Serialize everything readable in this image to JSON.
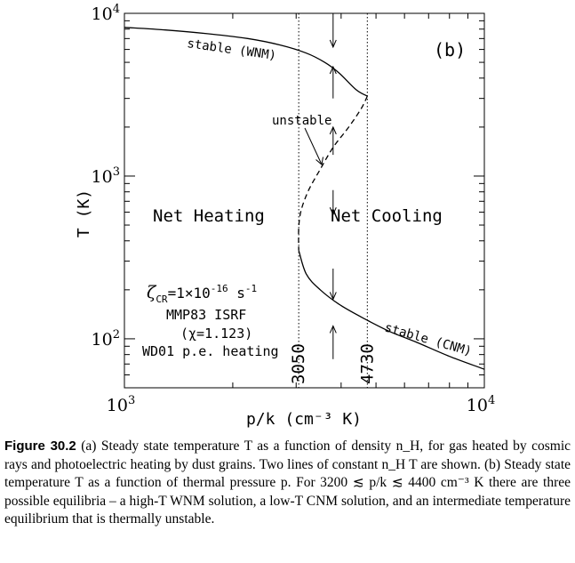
{
  "chart_data": {
    "type": "line",
    "panel_label": "(b)",
    "xlabel": "p/k (cm⁻³ K)",
    "ylabel": "T (K)",
    "xscale": "log",
    "yscale": "log",
    "xlim": [
      1000,
      10000
    ],
    "ylim": [
      50,
      10000
    ],
    "xticks": [
      {
        "value": 1000,
        "base": "10",
        "exp": "3"
      },
      {
        "value": 10000,
        "base": "10",
        "exp": "4"
      }
    ],
    "yticks": [
      {
        "value": 100,
        "base": "10",
        "exp": "2"
      },
      {
        "value": 1000,
        "base": "10",
        "exp": "3"
      },
      {
        "value": 10000,
        "base": "10",
        "exp": "4"
      }
    ],
    "series": [
      {
        "style": "solid",
        "points": [
          [
            1000,
            8200
          ],
          [
            1300,
            7900
          ],
          [
            1700,
            7500
          ],
          [
            2200,
            7000
          ],
          [
            2700,
            6400
          ],
          [
            3200,
            5700
          ],
          [
            3600,
            5000
          ],
          [
            3950,
            4300
          ],
          [
            4400,
            3400
          ],
          [
            4730,
            3100
          ]
        ]
      },
      {
        "style": "dashed",
        "points": [
          [
            4730,
            3100
          ],
          [
            4550,
            2600
          ],
          [
            4200,
            2000
          ],
          [
            3800,
            1500
          ],
          [
            3500,
            1100
          ],
          [
            3250,
            820
          ],
          [
            3100,
            620
          ],
          [
            3050,
            480
          ],
          [
            3050,
            350
          ]
        ]
      },
      {
        "style": "solid",
        "points": [
          [
            3050,
            350
          ],
          [
            3200,
            250
          ],
          [
            3500,
            200
          ],
          [
            4000,
            160
          ],
          [
            4730,
            130
          ],
          [
            5500,
            110
          ],
          [
            6500,
            95
          ],
          [
            8000,
            78
          ],
          [
            10000,
            65
          ]
        ]
      }
    ],
    "vertical_lines": [
      {
        "x": 3050,
        "label": "3050"
      },
      {
        "x": 4730,
        "label": "4730"
      }
    ],
    "arrows": [
      {
        "x": 3800,
        "y_from": 10000,
        "y_to": 6200
      },
      {
        "x": 3800,
        "y_from": 3000,
        "y_to": 4700
      },
      {
        "x": 3800,
        "y_from": 1350,
        "y_to": 2000
      },
      {
        "x": 3800,
        "y_from": 820,
        "y_to": 580
      },
      {
        "x": 3800,
        "y_from": 270,
        "y_to": 175
      },
      {
        "x": 3800,
        "y_from": 75,
        "y_to": 120
      }
    ],
    "annotations": {
      "stable_wnm": "stable (WNM)",
      "stable_cnm": "stable (CNM)",
      "unstable": "unstable",
      "net_heating": "Net Heating",
      "net_cooling": "Net Cooling",
      "zeta_symbol": "ζ",
      "zeta_sub": "CR",
      "zeta_rest": "=1×10",
      "zeta_exp": "-16",
      "zeta_unit": " s",
      "zeta_unit_exp": "-1",
      "isrf": "MMP83 ISRF",
      "chi": "(χ=1.123)",
      "heating": "WD01 p.e. heating"
    }
  },
  "caption": {
    "label": "Figure 30.2",
    "text": "(a) Steady state temperature T as a function of density n_H, for gas heated by cosmic rays and photoelectric heating by dust grains. Two lines of constant n_H T are shown. (b) Steady state temperature T as a function of thermal pressure p. For 3200 ≲ p/k ≲ 4400 cm⁻³ K there are three possible equilibria – a high-T WNM solution, a low-T CNM solution, and an intermediate temperature equilibrium that is thermally unstable."
  }
}
